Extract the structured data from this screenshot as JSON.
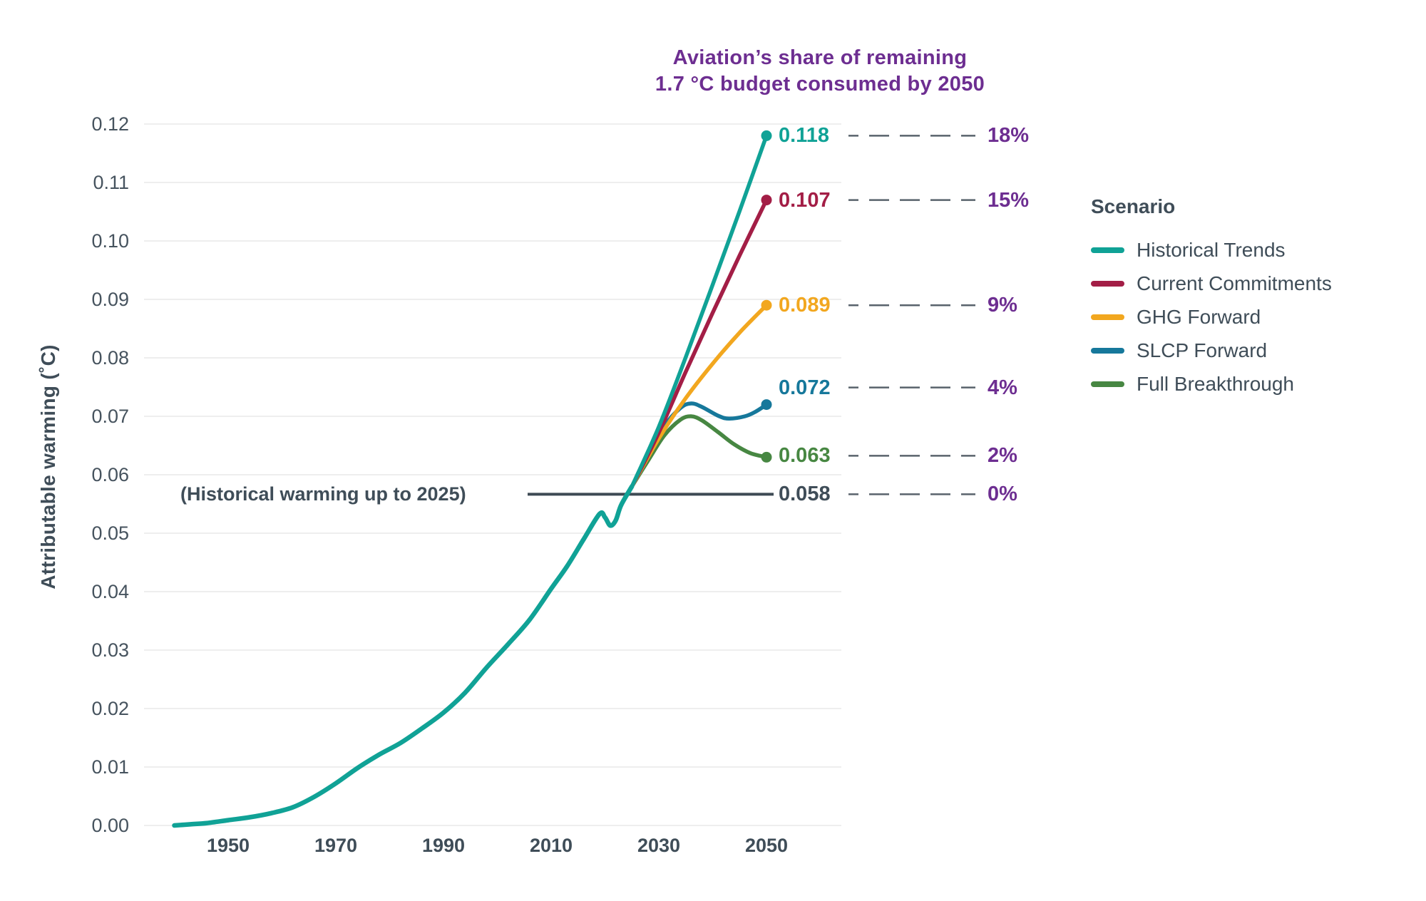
{
  "chart_data": {
    "type": "line",
    "title_lines": [
      "Aviation’s share of remaining",
      "1.7 °C budget consumed by 2050"
    ],
    "title_color": "#6D2E91",
    "ylabel": "Attributable warming (˚C)",
    "xlabel": "",
    "xlim": [
      1938,
      2052
    ],
    "ylim": [
      0,
      0.125
    ],
    "grid": true,
    "xticks": [
      1950,
      1970,
      1990,
      2010,
      2030,
      2050
    ],
    "yticks": [
      {
        "value": 0.0,
        "label": "0.00"
      },
      {
        "value": 0.01,
        "label": "0.01"
      },
      {
        "value": 0.02,
        "label": "0.02"
      },
      {
        "value": 0.03,
        "label": "0.03"
      },
      {
        "value": 0.04,
        "label": "0.04"
      },
      {
        "value": 0.05,
        "label": "0.05"
      },
      {
        "value": 0.06,
        "label": "0.06"
      },
      {
        "value": 0.07,
        "label": "0.07"
      },
      {
        "value": 0.08,
        "label": "0.08"
      },
      {
        "value": 0.09,
        "label": "0.09"
      },
      {
        "value": 0.1,
        "label": "0.10"
      },
      {
        "value": 0.11,
        "label": "0.11"
      },
      {
        "value": 0.12,
        "label": "0.12"
      }
    ],
    "historical": {
      "name": "Historical warming",
      "color": "#10A296",
      "points": [
        [
          1940,
          0.0
        ],
        [
          1943,
          0.0002
        ],
        [
          1946,
          0.0004
        ],
        [
          1950,
          0.0009
        ],
        [
          1954,
          0.0014
        ],
        [
          1958,
          0.0021
        ],
        [
          1962,
          0.0031
        ],
        [
          1966,
          0.0049
        ],
        [
          1970,
          0.0072
        ],
        [
          1974,
          0.0098
        ],
        [
          1978,
          0.0121
        ],
        [
          1982,
          0.0141
        ],
        [
          1986,
          0.0166
        ],
        [
          1990,
          0.0193
        ],
        [
          1994,
          0.0227
        ],
        [
          1998,
          0.027
        ],
        [
          2002,
          0.031
        ],
        [
          2006,
          0.0352
        ],
        [
          2010,
          0.0405
        ],
        [
          2013,
          0.0444
        ],
        [
          2016,
          0.0489
        ],
        [
          2019,
          0.0533
        ],
        [
          2020,
          0.0527
        ],
        [
          2021,
          0.0513
        ],
        [
          2022,
          0.0522
        ],
        [
          2023,
          0.0548
        ],
        [
          2025,
          0.058
        ]
      ]
    },
    "scenarios": [
      {
        "name": "Historical Trends",
        "color": "#10A296",
        "end_value": 0.118,
        "end_label": "0.118",
        "pct": "18%",
        "label_dy": 0,
        "points": [
          [
            2025,
            0.058
          ],
          [
            2030,
            0.0682
          ],
          [
            2035,
            0.0801
          ],
          [
            2040,
            0.0925
          ],
          [
            2045,
            0.1051
          ],
          [
            2050,
            0.118
          ]
        ]
      },
      {
        "name": "Current Commitments",
        "color": "#A31E46",
        "end_value": 0.107,
        "end_label": "0.107",
        "pct": "15%",
        "label_dy": 0,
        "points": [
          [
            2025,
            0.058
          ],
          [
            2030,
            0.0672
          ],
          [
            2035,
            0.0776
          ],
          [
            2040,
            0.0877
          ],
          [
            2045,
            0.0975
          ],
          [
            2050,
            0.107
          ]
        ]
      },
      {
        "name": "GHG Forward",
        "color": "#F2A71F",
        "end_value": 0.089,
        "end_label": "0.089",
        "pct": "9%",
        "label_dy": 0,
        "points": [
          [
            2025,
            0.058
          ],
          [
            2030,
            0.0662
          ],
          [
            2035,
            0.0731
          ],
          [
            2040,
            0.079
          ],
          [
            2045,
            0.0843
          ],
          [
            2050,
            0.089
          ]
        ]
      },
      {
        "name": "SLCP Forward",
        "color": "#16789B",
        "end_value": 0.072,
        "end_label": "0.072",
        "pct": "4%",
        "label_dy": -24,
        "points": [
          [
            2025,
            0.058
          ],
          [
            2028,
            0.063
          ],
          [
            2031,
            0.0683
          ],
          [
            2034,
            0.0714
          ],
          [
            2036,
            0.0722
          ],
          [
            2038,
            0.0716
          ],
          [
            2041,
            0.0701
          ],
          [
            2043,
            0.0696
          ],
          [
            2046,
            0.07
          ],
          [
            2048,
            0.0708
          ],
          [
            2050,
            0.072
          ]
        ]
      },
      {
        "name": "Full Breakthrough",
        "color": "#478742",
        "end_value": 0.063,
        "end_label": "0.063",
        "pct": "2%",
        "label_dy": -2,
        "points": [
          [
            2025,
            0.058
          ],
          [
            2028,
            0.0624
          ],
          [
            2031,
            0.0667
          ],
          [
            2034,
            0.0694
          ],
          [
            2036,
            0.07
          ],
          [
            2038,
            0.0693
          ],
          [
            2041,
            0.0673
          ],
          [
            2044,
            0.0652
          ],
          [
            2047,
            0.0637
          ],
          [
            2050,
            0.063
          ]
        ]
      }
    ],
    "annotation": {
      "text": "(Historical warming up to 2025)",
      "value": 0.058,
      "value_label": "0.058",
      "pct": "0%",
      "line_color": "#3E4A54",
      "text_color": "#3F4D58"
    },
    "legend_title": "Scenario",
    "pct_color": "#6D2E91",
    "connector_color": "#59636C",
    "grid_color": "#E8E8E8",
    "tick_color": "#46535E"
  }
}
